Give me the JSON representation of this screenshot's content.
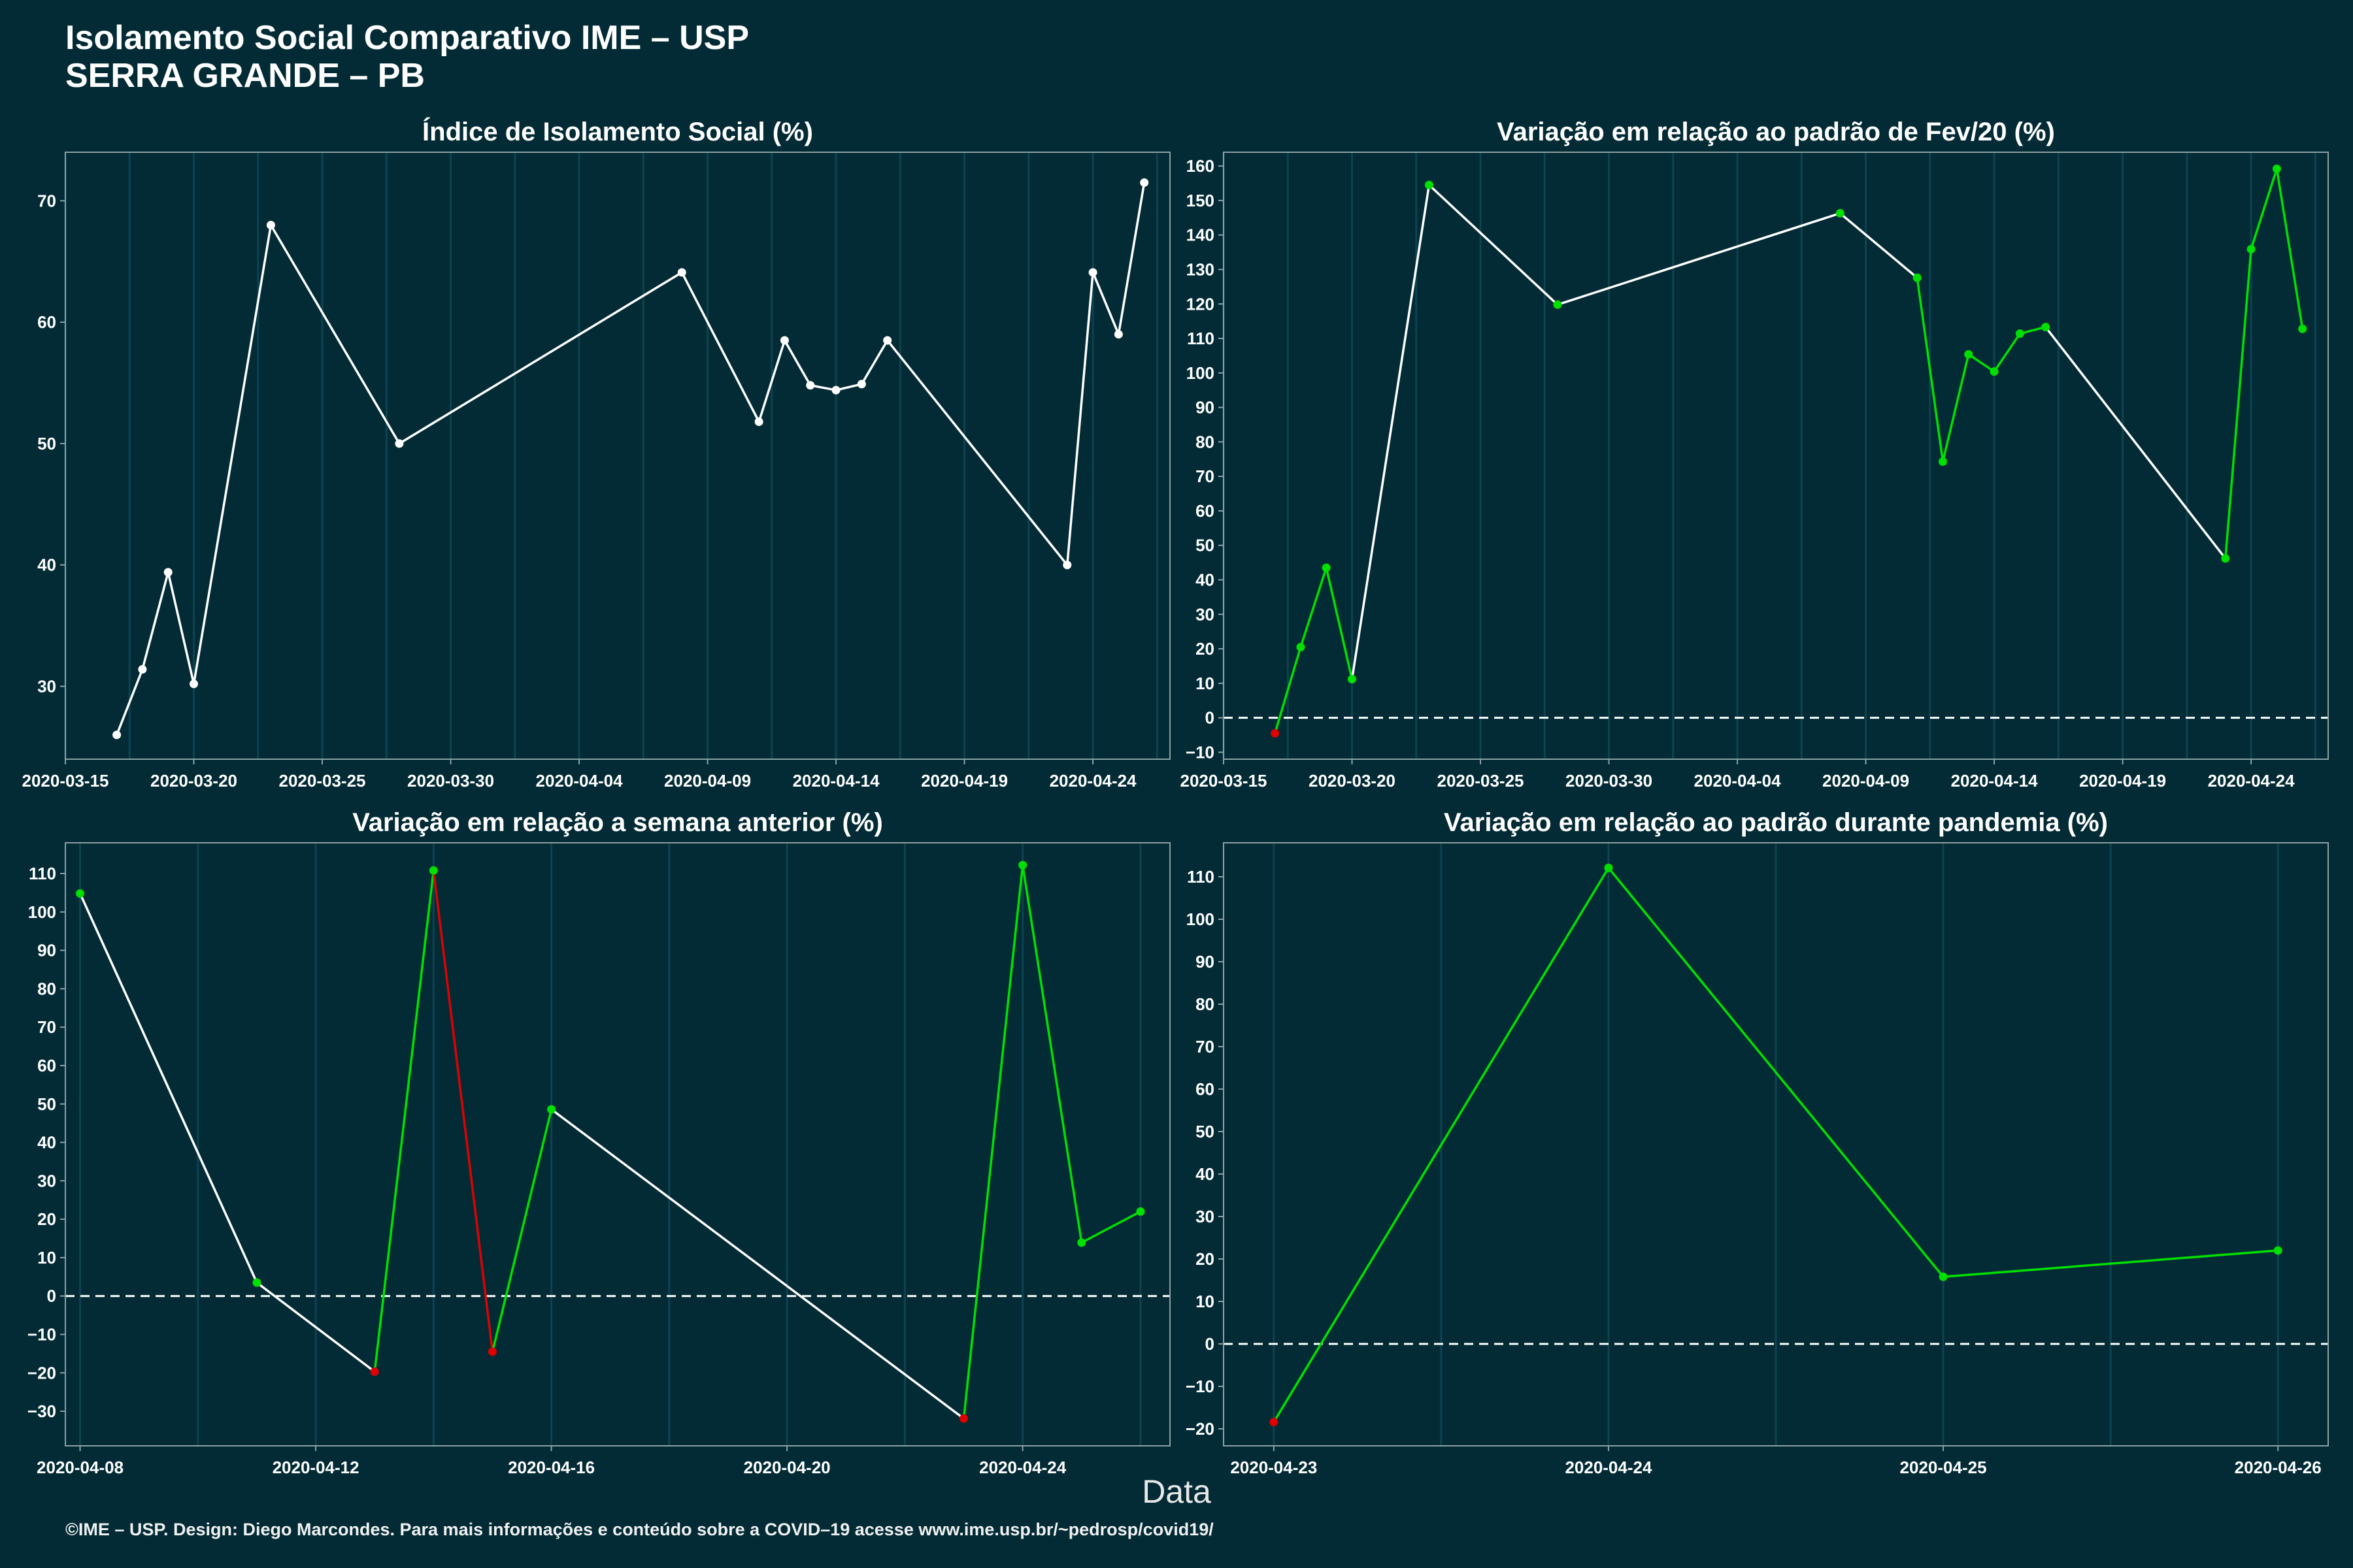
{
  "header": {
    "title_line1": "Isolamento Social Comparativo IME – USP",
    "title_line2": "SERRA GRANDE – PB"
  },
  "x_axis_caption": "Data",
  "footer": "©IME – USP. Design: Diego Marcondes. Para mais informações e conteúdo sobre a COVID–19 acesse www.ime.usp.br/~pedrosp/covid19/",
  "colors": {
    "background": "#022b36",
    "positive": "#00e000",
    "negative": "#e00000",
    "neutral": "#ffffff"
  },
  "chart_data": [
    {
      "type": "line",
      "title": "Índice de Isolamento Social (%)",
      "x_type": "date",
      "xlim": [
        "2020-03-15",
        "2020-04-27"
      ],
      "x_ticks": [
        "2020-03-15",
        "2020-03-20",
        "2020-03-25",
        "2020-03-30",
        "2020-04-04",
        "2020-04-09",
        "2020-04-14",
        "2020-04-19",
        "2020-04-24"
      ],
      "ylim": [
        24,
        74
      ],
      "y_ticks": [
        30,
        40,
        50,
        60,
        70
      ],
      "zero_line": false,
      "points": [
        {
          "x": "2020-03-17",
          "y": 26,
          "c": "w"
        },
        {
          "x": "2020-03-18",
          "y": 31.4,
          "c": "w"
        },
        {
          "x": "2020-03-19",
          "y": 39.4,
          "c": "w"
        },
        {
          "x": "2020-03-20",
          "y": 30.2,
          "c": "w"
        },
        {
          "x": "2020-03-23",
          "y": 68,
          "c": "w"
        },
        {
          "x": "2020-03-28",
          "y": 50,
          "c": "w"
        },
        {
          "x": "2020-04-08",
          "y": 64.1,
          "c": "w"
        },
        {
          "x": "2020-04-11",
          "y": 51.8,
          "c": "w"
        },
        {
          "x": "2020-04-12",
          "y": 58.5,
          "c": "w"
        },
        {
          "x": "2020-04-13",
          "y": 54.8,
          "c": "w"
        },
        {
          "x": "2020-04-14",
          "y": 54.4,
          "c": "w"
        },
        {
          "x": "2020-04-15",
          "y": 54.9,
          "c": "w"
        },
        {
          "x": "2020-04-16",
          "y": 58.5,
          "c": "w"
        },
        {
          "x": "2020-04-23",
          "y": 40,
          "c": "w"
        },
        {
          "x": "2020-04-24",
          "y": 64.1,
          "c": "w"
        },
        {
          "x": "2020-04-25",
          "y": 59,
          "c": "w"
        },
        {
          "x": "2020-04-26",
          "y": 71.5,
          "c": "w"
        }
      ],
      "segment_colors": [
        "w",
        "w",
        "w",
        "w",
        "w",
        "w",
        "w",
        "w",
        "w",
        "w",
        "w",
        "w",
        "w",
        "w",
        "w",
        "w"
      ]
    },
    {
      "type": "line",
      "title": "Variação em relação ao padrão de Fev/20 (%)",
      "x_type": "date",
      "xlim": [
        "2020-03-15",
        "2020-04-27"
      ],
      "x_ticks": [
        "2020-03-15",
        "2020-03-20",
        "2020-03-25",
        "2020-03-30",
        "2020-04-04",
        "2020-04-09",
        "2020-04-14",
        "2020-04-19",
        "2020-04-24"
      ],
      "ylim": [
        -12,
        164
      ],
      "y_ticks": [
        -10,
        0,
        10,
        20,
        30,
        40,
        50,
        60,
        70,
        80,
        90,
        100,
        110,
        120,
        130,
        140,
        150,
        160
      ],
      "zero_line": true,
      "points": [
        {
          "x": "2020-03-17",
          "y": -4.5,
          "c": "r"
        },
        {
          "x": "2020-03-18",
          "y": 20.5,
          "c": "g"
        },
        {
          "x": "2020-03-19",
          "y": 43.5,
          "c": "g"
        },
        {
          "x": "2020-03-20",
          "y": 11.2,
          "c": "g"
        },
        {
          "x": "2020-03-23",
          "y": 154.5,
          "c": "g"
        },
        {
          "x": "2020-03-28",
          "y": 119.8,
          "c": "g"
        },
        {
          "x": "2020-04-08",
          "y": 146.3,
          "c": "g"
        },
        {
          "x": "2020-04-11",
          "y": 127.6,
          "c": "g"
        },
        {
          "x": "2020-04-12",
          "y": 74.3,
          "c": "g"
        },
        {
          "x": "2020-04-13",
          "y": 105.4,
          "c": "g"
        },
        {
          "x": "2020-04-14",
          "y": 100.4,
          "c": "g"
        },
        {
          "x": "2020-04-15",
          "y": 111.4,
          "c": "g"
        },
        {
          "x": "2020-04-16",
          "y": 113.3,
          "c": "g"
        },
        {
          "x": "2020-04-23",
          "y": 46.2,
          "c": "g"
        },
        {
          "x": "2020-04-24",
          "y": 135.9,
          "c": "g"
        },
        {
          "x": "2020-04-25",
          "y": 159.2,
          "c": "g"
        },
        {
          "x": "2020-04-26",
          "y": 112.8,
          "c": "g"
        }
      ],
      "segment_colors": [
        "g",
        "g",
        "g",
        "w",
        "w",
        "w",
        "w",
        "g",
        "g",
        "g",
        "g",
        "g",
        "w",
        "g",
        "g",
        "g"
      ]
    },
    {
      "type": "line",
      "title": "Variação em relação a semana anterior (%)",
      "x_type": "date",
      "xlim": [
        "2020-04-07.75",
        "2020-04-26.5"
      ],
      "x_ticks": [
        "2020-04-08",
        "2020-04-12",
        "2020-04-16",
        "2020-04-20",
        "2020-04-24"
      ],
      "ylim": [
        -39,
        118
      ],
      "y_ticks": [
        -30,
        -20,
        -10,
        0,
        10,
        20,
        30,
        40,
        50,
        60,
        70,
        80,
        90,
        100,
        110
      ],
      "zero_line": true,
      "points": [
        {
          "x": "2020-04-08",
          "y": 104.8,
          "c": "g"
        },
        {
          "x": "2020-04-11",
          "y": 3.5,
          "c": "g"
        },
        {
          "x": "2020-04-13",
          "y": -19.7,
          "c": "r"
        },
        {
          "x": "2020-04-14",
          "y": 110.8,
          "c": "g"
        },
        {
          "x": "2020-04-15",
          "y": -14.5,
          "c": "r"
        },
        {
          "x": "2020-04-16",
          "y": 48.6,
          "c": "g"
        },
        {
          "x": "2020-04-23",
          "y": -31.9,
          "c": "r"
        },
        {
          "x": "2020-04-24",
          "y": 112.2,
          "c": "g"
        },
        {
          "x": "2020-04-25",
          "y": 13.9,
          "c": "g"
        },
        {
          "x": "2020-04-26",
          "y": 22,
          "c": "g"
        }
      ],
      "segment_colors": [
        "w",
        "w",
        "g",
        "r",
        "g",
        "w",
        "g",
        "g",
        "g"
      ]
    },
    {
      "type": "line",
      "title": "Variação em relação ao padrão durante pandemia (%)",
      "x_type": "date",
      "xlim": [
        "2020-04-22.85",
        "2020-04-26.15"
      ],
      "x_ticks": [
        "2020-04-23",
        "2020-04-24",
        "2020-04-25",
        "2020-04-26"
      ],
      "ylim": [
        -24,
        118
      ],
      "y_ticks": [
        -20,
        -10,
        0,
        10,
        20,
        30,
        40,
        50,
        60,
        70,
        80,
        90,
        100,
        110
      ],
      "zero_line": true,
      "points": [
        {
          "x": "2020-04-23",
          "y": -18.4,
          "c": "r"
        },
        {
          "x": "2020-04-24",
          "y": 112.1,
          "c": "g"
        },
        {
          "x": "2020-04-25",
          "y": 15.8,
          "c": "g"
        },
        {
          "x": "2020-04-26",
          "y": 22,
          "c": "g"
        }
      ],
      "segment_colors": [
        "g",
        "g",
        "g"
      ]
    }
  ]
}
